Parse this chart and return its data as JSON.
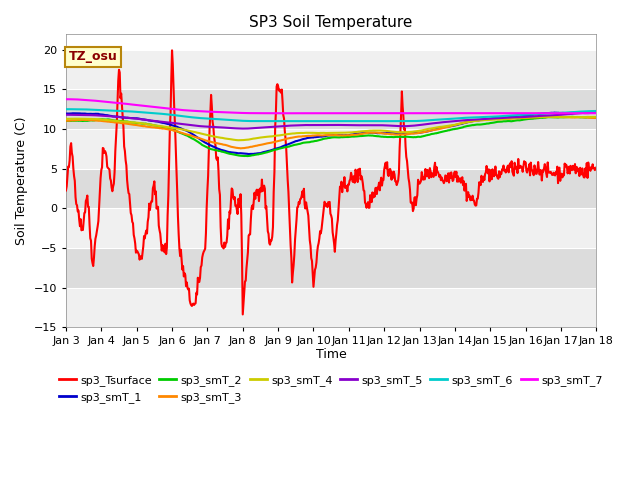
{
  "title": "SP3 Soil Temperature",
  "xlabel": "Time",
  "ylabel": "Soil Temperature (C)",
  "ylim": [
    -15,
    22
  ],
  "yticks": [
    -15,
    -10,
    -5,
    0,
    5,
    10,
    15,
    20
  ],
  "figure_bg": "#ffffff",
  "plot_bg_light": "#f0f0f0",
  "plot_bg_dark": "#dcdcdc",
  "annotation_text": "TZ_osu",
  "annotation_color": "#8b0000",
  "annotation_bg": "#ffffcc",
  "annotation_border": "#b8860b",
  "series_colors": {
    "sp3_Tsurface": "#ff0000",
    "sp3_smT_1": "#0000cc",
    "sp3_smT_2": "#00cc00",
    "sp3_smT_3": "#ff8800",
    "sp3_smT_4": "#cccc00",
    "sp3_smT_5": "#8800cc",
    "sp3_smT_6": "#00cccc",
    "sp3_smT_7": "#ff00ff"
  },
  "x_tick_labels": [
    "Jan 3",
    "Jan 4",
    "Jan 5",
    "Jan 6",
    "Jan 7",
    "Jan 8",
    "Jan 9",
    "Jan 10",
    "Jan 11",
    "Jan 12",
    "Jan 13",
    "Jan 14",
    "Jan 15",
    "Jan 16",
    "Jan 17",
    "Jan 18"
  ],
  "n_points": 721
}
